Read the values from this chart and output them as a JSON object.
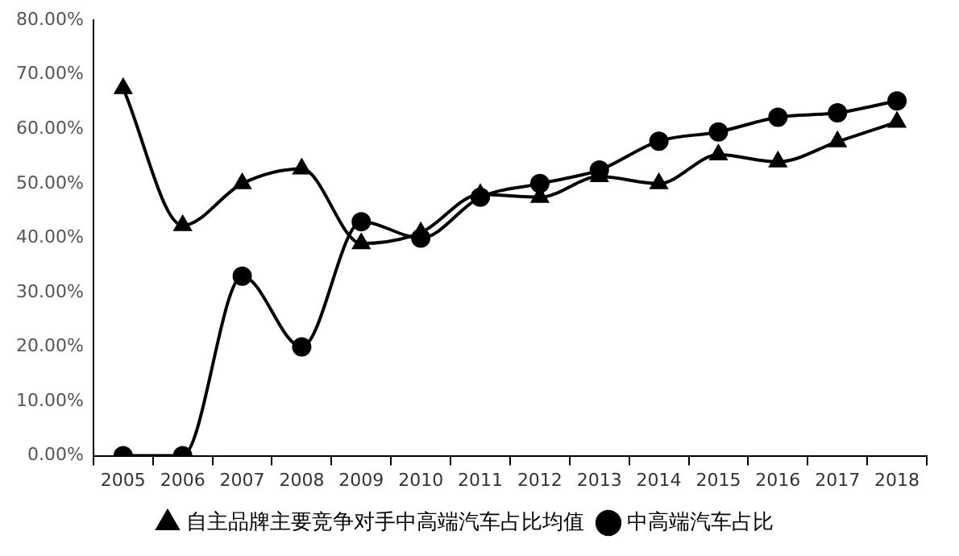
{
  "chart_data": {
    "type": "line",
    "categories": [
      "2005",
      "2006",
      "2007",
      "2008",
      "2009",
      "2010",
      "2011",
      "2012",
      "2013",
      "2014",
      "2015",
      "2016",
      "2017",
      "2018"
    ],
    "series": [
      {
        "name": "中高端汽车占比",
        "color": "#000000",
        "marker": "circle",
        "values": [
          0,
          0,
          33,
          20,
          43,
          40,
          47.5,
          50,
          52.5,
          57.8,
          59.5,
          62.2,
          63,
          65.2
        ]
      },
      {
        "name": "自主品牌主要竞争对手中高端汽车占比均值",
        "color": "#000000",
        "marker": "triangle",
        "values": [
          67.5,
          42.3,
          50,
          52.7,
          39,
          41,
          48,
          47.5,
          51.3,
          50,
          55.3,
          54,
          57.7,
          61.3
        ]
      }
    ],
    "ylim": [
      0,
      80
    ],
    "yticks": [
      {
        "value": 0,
        "label": "0.00%"
      },
      {
        "value": 10,
        "label": "10.00%"
      },
      {
        "value": 20,
        "label": "20.00%"
      },
      {
        "value": 30,
        "label": "30.00%"
      },
      {
        "value": 40,
        "label": "40.00%"
      },
      {
        "value": 50,
        "label": "50.00%"
      },
      {
        "value": 60,
        "label": "60.00%"
      },
      {
        "value": 70,
        "label": "70.00%"
      },
      {
        "value": 80,
        "label": "80.00%"
      }
    ],
    "grid": false,
    "legend": "bottom",
    "line_style": "solid"
  }
}
